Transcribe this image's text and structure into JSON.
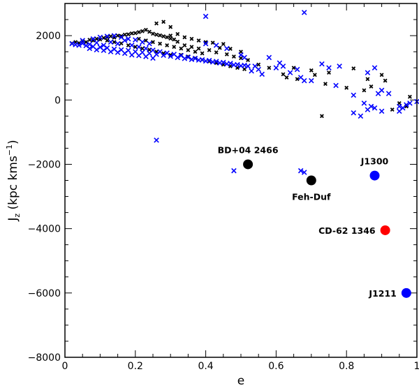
{
  "chart_data": {
    "type": "scatter",
    "title": "",
    "xlabel": "e",
    "ylabel": "J_z (kpc kms^-1)",
    "ylabel_parts": {
      "main": "J",
      "sub": "z",
      "units": " (kpc kms",
      "sup": "−1",
      "close": ")"
    },
    "xlim": [
      0,
      1
    ],
    "ylim": [
      -8000,
      3000
    ],
    "grid": false,
    "x_ticks": [
      {
        "value": 0,
        "label": "0"
      },
      {
        "value": 0.2,
        "label": "0.2"
      },
      {
        "value": 0.4,
        "label": "0.4"
      },
      {
        "value": 0.6,
        "label": "0.6"
      },
      {
        "value": 0.8,
        "label": "0.8"
      },
      {
        "value": 1,
        "label": "1"
      }
    ],
    "y_ticks": [
      {
        "value": -8000,
        "label": "−8000"
      },
      {
        "value": -6000,
        "label": "−6000"
      },
      {
        "value": -4000,
        "label": "−4000"
      },
      {
        "value": -2000,
        "label": "−2000"
      },
      {
        "value": 0,
        "label": "0"
      },
      {
        "value": 2000,
        "label": "2000"
      }
    ],
    "series": [
      {
        "color": "#000000",
        "marker": "x-small",
        "points": [
          [
            0.02,
            1760
          ],
          [
            0.03,
            1800
          ],
          [
            0.04,
            1770
          ],
          [
            0.05,
            1830
          ],
          [
            0.06,
            1800
          ],
          [
            0.07,
            1870
          ],
          [
            0.08,
            1850
          ],
          [
            0.09,
            1900
          ],
          [
            0.1,
            1880
          ],
          [
            0.11,
            1930
          ],
          [
            0.12,
            1950
          ],
          [
            0.13,
            1980
          ],
          [
            0.14,
            1940
          ],
          [
            0.15,
            2000
          ],
          [
            0.16,
            1990
          ],
          [
            0.17,
            2030
          ],
          [
            0.18,
            2040
          ],
          [
            0.19,
            2070
          ],
          [
            0.2,
            2080
          ],
          [
            0.21,
            2110
          ],
          [
            0.22,
            2140
          ],
          [
            0.23,
            2180
          ],
          [
            0.24,
            2120
          ],
          [
            0.25,
            2060
          ],
          [
            0.26,
            2030
          ],
          [
            0.27,
            2010
          ],
          [
            0.28,
            1980
          ],
          [
            0.29,
            1950
          ],
          [
            0.3,
            1910
          ],
          [
            0.31,
            1880
          ],
          [
            0.12,
            1850
          ],
          [
            0.14,
            1800
          ],
          [
            0.16,
            1760
          ],
          [
            0.18,
            1700
          ],
          [
            0.2,
            1650
          ],
          [
            0.22,
            1600
          ],
          [
            0.24,
            1560
          ],
          [
            0.26,
            1500
          ],
          [
            0.28,
            1450
          ],
          [
            0.3,
            1400
          ],
          [
            0.21,
            1900
          ],
          [
            0.23,
            1850
          ],
          [
            0.25,
            1800
          ],
          [
            0.27,
            1750
          ],
          [
            0.29,
            1700
          ],
          [
            0.31,
            1650
          ],
          [
            0.33,
            1600
          ],
          [
            0.35,
            1550
          ],
          [
            0.37,
            1500
          ],
          [
            0.39,
            1450
          ],
          [
            0.26,
            2380
          ],
          [
            0.28,
            2430
          ],
          [
            0.3,
            2270
          ],
          [
            0.32,
            2050
          ],
          [
            0.34,
            1950
          ],
          [
            0.36,
            1900
          ],
          [
            0.38,
            1850
          ],
          [
            0.4,
            1800
          ],
          [
            0.42,
            1780
          ],
          [
            0.45,
            1740
          ],
          [
            0.3,
            2000
          ],
          [
            0.32,
            1810
          ],
          [
            0.34,
            1700
          ],
          [
            0.36,
            1650
          ],
          [
            0.38,
            1600
          ],
          [
            0.41,
            1550
          ],
          [
            0.43,
            1480
          ],
          [
            0.46,
            1420
          ],
          [
            0.48,
            1350
          ],
          [
            0.5,
            1300
          ],
          [
            0.33,
            1400
          ],
          [
            0.35,
            1350
          ],
          [
            0.37,
            1300
          ],
          [
            0.39,
            1250
          ],
          [
            0.41,
            1200
          ],
          [
            0.43,
            1150
          ],
          [
            0.45,
            1100
          ],
          [
            0.47,
            1050
          ],
          [
            0.49,
            1000
          ],
          [
            0.51,
            960
          ],
          [
            0.44,
            1620
          ],
          [
            0.47,
            1590
          ],
          [
            0.5,
            1500
          ],
          [
            0.52,
            1240
          ],
          [
            0.55,
            1100
          ],
          [
            0.58,
            1000
          ],
          [
            0.62,
            800
          ],
          [
            0.63,
            700
          ],
          [
            0.65,
            1000
          ],
          [
            0.66,
            650
          ],
          [
            0.7,
            920
          ],
          [
            0.71,
            780
          ],
          [
            0.74,
            500
          ],
          [
            0.75,
            850
          ],
          [
            0.8,
            380
          ],
          [
            0.82,
            980
          ],
          [
            0.85,
            300
          ],
          [
            0.86,
            650
          ],
          [
            0.87,
            420
          ],
          [
            0.9,
            780
          ],
          [
            0.91,
            600
          ],
          [
            0.93,
            -300
          ],
          [
            0.95,
            -100
          ],
          [
            0.97,
            -200
          ],
          [
            0.98,
            100
          ],
          [
            0.73,
            -500
          ]
        ]
      },
      {
        "color": "#0000ff",
        "marker": "x",
        "points": [
          [
            0.02,
            1750
          ],
          [
            0.03,
            1720
          ],
          [
            0.04,
            1700
          ],
          [
            0.05,
            1760
          ],
          [
            0.06,
            1690
          ],
          [
            0.07,
            1730
          ],
          [
            0.08,
            1660
          ],
          [
            0.09,
            1780
          ],
          [
            0.1,
            1640
          ],
          [
            0.11,
            1700
          ],
          [
            0.12,
            1620
          ],
          [
            0.13,
            1800
          ],
          [
            0.14,
            1580
          ],
          [
            0.15,
            1750
          ],
          [
            0.16,
            1560
          ],
          [
            0.17,
            1850
          ],
          [
            0.18,
            1540
          ],
          [
            0.19,
            1700
          ],
          [
            0.2,
            1500
          ],
          [
            0.21,
            1650
          ],
          [
            0.22,
            1480
          ],
          [
            0.23,
            1600
          ],
          [
            0.24,
            1450
          ],
          [
            0.25,
            1550
          ],
          [
            0.26,
            1420
          ],
          [
            0.27,
            1500
          ],
          [
            0.28,
            1390
          ],
          [
            0.29,
            1460
          ],
          [
            0.3,
            1360
          ],
          [
            0.31,
            1420
          ],
          [
            0.32,
            1320
          ],
          [
            0.33,
            1380
          ],
          [
            0.34,
            1290
          ],
          [
            0.35,
            1330
          ],
          [
            0.36,
            1260
          ],
          [
            0.37,
            1290
          ],
          [
            0.38,
            1240
          ],
          [
            0.39,
            1250
          ],
          [
            0.4,
            1210
          ],
          [
            0.41,
            1230
          ],
          [
            0.42,
            1180
          ],
          [
            0.43,
            1200
          ],
          [
            0.44,
            1150
          ],
          [
            0.45,
            1170
          ],
          [
            0.46,
            1120
          ],
          [
            0.47,
            1140
          ],
          [
            0.48,
            1090
          ],
          [
            0.49,
            1100
          ],
          [
            0.5,
            1060
          ],
          [
            0.51,
            1080
          ],
          [
            0.52,
            1050
          ],
          [
            0.53,
            900
          ],
          [
            0.54,
            1050
          ],
          [
            0.55,
            950
          ],
          [
            0.56,
            800
          ],
          [
            0.05,
            1850
          ],
          [
            0.08,
            1900
          ],
          [
            0.1,
            1950
          ],
          [
            0.12,
            1980
          ],
          [
            0.14,
            2000
          ],
          [
            0.16,
            1950
          ],
          [
            0.18,
            1900
          ],
          [
            0.2,
            1870
          ],
          [
            0.22,
            1800
          ],
          [
            0.24,
            1750
          ],
          [
            0.07,
            1600
          ],
          [
            0.09,
            1560
          ],
          [
            0.11,
            1540
          ],
          [
            0.13,
            1500
          ],
          [
            0.15,
            1480
          ],
          [
            0.17,
            1450
          ],
          [
            0.19,
            1400
          ],
          [
            0.21,
            1380
          ],
          [
            0.23,
            1350
          ],
          [
            0.25,
            1300
          ],
          [
            0.4,
            1750
          ],
          [
            0.43,
            1700
          ],
          [
            0.46,
            1600
          ],
          [
            0.5,
            1400
          ],
          [
            0.51,
            1320
          ],
          [
            0.58,
            1320
          ],
          [
            0.6,
            1000
          ],
          [
            0.61,
            1150
          ],
          [
            0.62,
            1050
          ],
          [
            0.64,
            850
          ],
          [
            0.66,
            950
          ],
          [
            0.67,
            700
          ],
          [
            0.68,
            600
          ],
          [
            0.7,
            600
          ],
          [
            0.73,
            1120
          ],
          [
            0.75,
            1000
          ],
          [
            0.77,
            450
          ],
          [
            0.78,
            1050
          ],
          [
            0.82,
            150
          ],
          [
            0.4,
            2600
          ],
          [
            0.68,
            2720
          ],
          [
            0.52,
            1050
          ],
          [
            0.86,
            850
          ],
          [
            0.88,
            1000
          ],
          [
            0.89,
            200
          ],
          [
            0.9,
            300
          ],
          [
            0.92,
            200
          ],
          [
            0.85,
            -100
          ],
          [
            0.86,
            -300
          ],
          [
            0.87,
            -200
          ],
          [
            0.88,
            -250
          ],
          [
            0.9,
            -350
          ],
          [
            0.95,
            -200
          ],
          [
            0.96,
            -250
          ],
          [
            0.97,
            -150
          ],
          [
            0.98,
            -100
          ],
          [
            1.0,
            -50
          ],
          [
            0.82,
            -400
          ],
          [
            0.84,
            -500
          ],
          [
            0.95,
            -350
          ],
          [
            0.26,
            -1250
          ],
          [
            0.48,
            -2200
          ],
          [
            0.67,
            -2200
          ],
          [
            0.68,
            -2250
          ]
        ]
      }
    ],
    "highlighted": [
      {
        "name": "BD+04 2466",
        "x": 0.52,
        "y": -2000,
        "color": "#000000",
        "label_pos": "above"
      },
      {
        "name": "Feh-Duf",
        "x": 0.7,
        "y": -2500,
        "color": "#000000",
        "label_pos": "below"
      },
      {
        "name": "J1300",
        "x": 0.88,
        "y": -2350,
        "color": "#0000ff",
        "label_pos": "above"
      },
      {
        "name": "CD-62 1346",
        "x": 0.91,
        "y": -4050,
        "color": "#ff0000",
        "label_pos": "left"
      },
      {
        "name": "J1211",
        "x": 0.97,
        "y": -6000,
        "color": "#0000ff",
        "label_pos": "left"
      }
    ]
  }
}
